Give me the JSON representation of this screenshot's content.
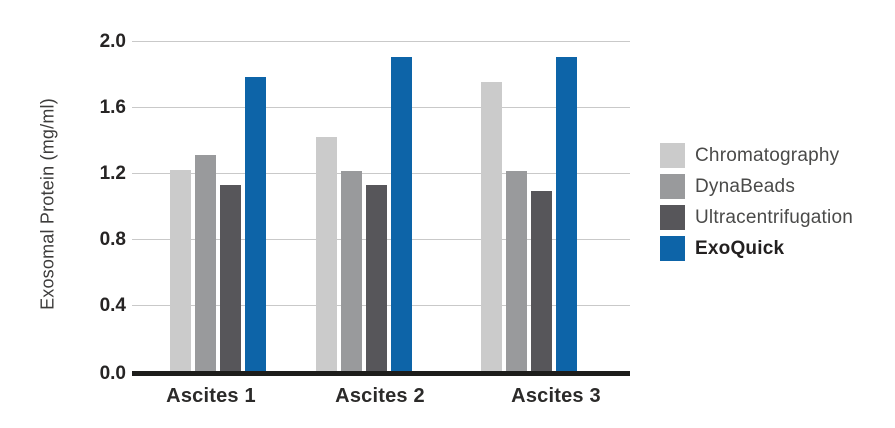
{
  "chart_data": {
    "type": "bar",
    "title": "",
    "xlabel": "",
    "ylabel": "Exosomal Protein (mg/ml)",
    "ylim": [
      0.0,
      2.0
    ],
    "ytick_step": 0.4,
    "ytick_labels": [
      "2.0",
      "1.6",
      "1.2",
      "0.8",
      "0.4",
      "0.0"
    ],
    "categories": [
      "Ascites 1",
      "Ascites 2",
      "Ascites 3"
    ],
    "series": [
      {
        "name": "Chromatography",
        "color": "#cbcbcb",
        "values": [
          1.22,
          1.42,
          1.75
        ],
        "bold_legend": false
      },
      {
        "name": "DynaBeads",
        "color": "#999a9c",
        "values": [
          1.31,
          1.21,
          1.21
        ],
        "bold_legend": false
      },
      {
        "name": "Ultracentrifugation",
        "color": "#57565a",
        "values": [
          1.13,
          1.13,
          1.09
        ],
        "bold_legend": false
      },
      {
        "name": "ExoQuick",
        "color": "#0d64a8",
        "values": [
          1.78,
          1.9,
          1.9
        ],
        "bold_legend": true
      }
    ],
    "legend_position": "right",
    "grid": true,
    "style": {
      "background": "#ffffff",
      "grid_color": "#c9c9c9",
      "axis_color": "#1d1d1b",
      "tick_text_color": "#262424",
      "accent_blue": "#0d64a8"
    }
  }
}
